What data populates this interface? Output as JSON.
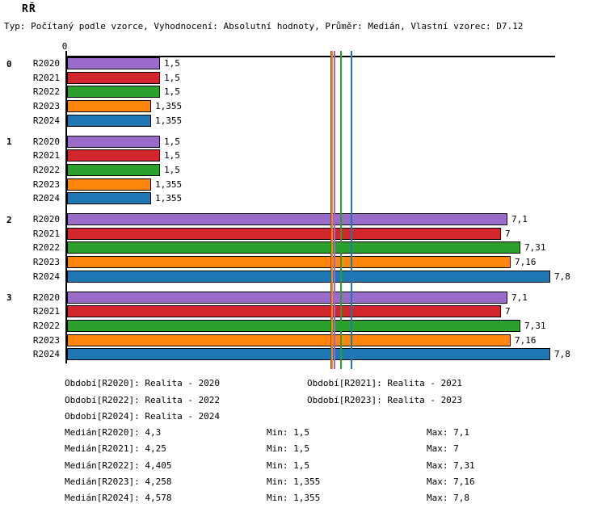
{
  "header": {
    "title": "RŘ",
    "subtitle": "Typ: Počítaný podle vzorce, Vyhodnocení: Absolutní hodnoty, Průměr: Medián, Vlastní vzorec: D7.12"
  },
  "chart_data": {
    "type": "bar",
    "orientation": "horizontal",
    "origin_tick_label": "0",
    "xlim": [
      0,
      7.9
    ],
    "categories": [
      "0",
      "1",
      "2",
      "3"
    ],
    "series": [
      {
        "name": "R2020",
        "color": "#9A6BC9",
        "values": [
          1.5,
          1.5,
          7.1,
          7.1
        ],
        "value_labels": [
          "1,5",
          "1,5",
          "7,1",
          "7,1"
        ],
        "median": 4.3,
        "median_label": "4,3",
        "min_label": "1,5",
        "max_label": "7,1"
      },
      {
        "name": "R2021",
        "color": "#D1262C",
        "values": [
          1.5,
          1.5,
          7.0,
          7.0
        ],
        "value_labels": [
          "1,5",
          "1,5",
          "7",
          "7"
        ],
        "median": 4.25,
        "median_label": "4,25",
        "min_label": "1,5",
        "max_label": "7"
      },
      {
        "name": "R2022",
        "color": "#2CA02C",
        "values": [
          1.5,
          1.5,
          7.31,
          7.31
        ],
        "value_labels": [
          "1,5",
          "1,5",
          "7,31",
          "7,31"
        ],
        "median": 4.405,
        "median_label": "4,405",
        "min_label": "1,5",
        "max_label": "7,31"
      },
      {
        "name": "R2023",
        "color": "#FF860D",
        "values": [
          1.355,
          1.355,
          7.16,
          7.16
        ],
        "value_labels": [
          "1,355",
          "1,355",
          "7,16",
          "7,16"
        ],
        "median": 4.258,
        "median_label": "4,258",
        "min_label": "1,355",
        "max_label": "7,16"
      },
      {
        "name": "R2024",
        "color": "#1F77B4",
        "values": [
          1.355,
          1.355,
          7.8,
          7.8
        ],
        "value_labels": [
          "1,355",
          "1,355",
          "7,8",
          "7,8"
        ],
        "median": 4.578,
        "median_label": "4,578",
        "min_label": "1,355",
        "max_label": "7,8"
      }
    ]
  },
  "legend": {
    "periods": [
      "Období[R2020]: Realita - 2020",
      "Období[R2021]: Realita - 2021",
      "Období[R2022]: Realita - 2022",
      "Období[R2023]: Realita - 2023",
      "Období[R2024]: Realita - 2024"
    ],
    "stats": [
      {
        "median": "Medián[R2020]: 4,3",
        "min": "Min: 1,5",
        "max": "Max: 7,1"
      },
      {
        "median": "Medián[R2021]: 4,25",
        "min": "Min: 1,5",
        "max": "Max: 7"
      },
      {
        "median": "Medián[R2022]: 4,405",
        "min": "Min: 1,5",
        "max": "Max: 7,31"
      },
      {
        "median": "Medián[R2023]: 4,258",
        "min": "Min: 1,355",
        "max": "Max: 7,16"
      },
      {
        "median": "Medián[R2024]: 4,578",
        "min": "Min: 1,355",
        "max": "Max: 7,8"
      }
    ]
  }
}
